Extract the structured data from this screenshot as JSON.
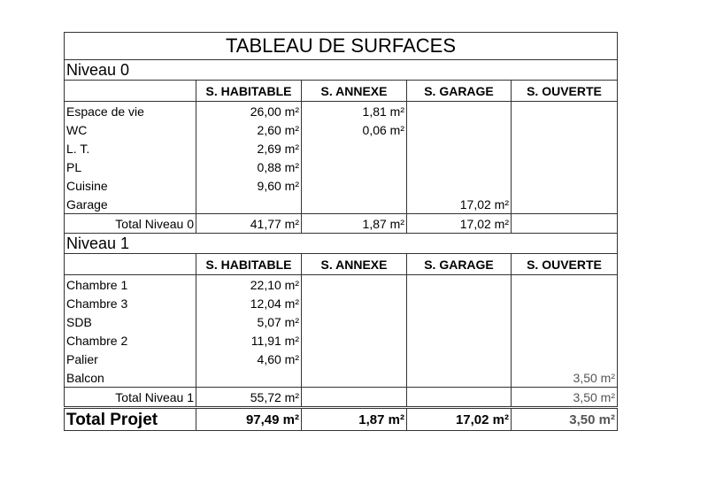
{
  "title": "TABLEAU DE SURFACES",
  "columns": [
    "S. HABITABLE",
    "S. ANNEXE",
    "S. GARAGE",
    "S. OUVERTE"
  ],
  "levels": [
    {
      "name": "Niveau 0",
      "rows": [
        {
          "label": "Espace de vie",
          "habitable": "26,00 m²",
          "annexe": "1,81 m²",
          "garage": "",
          "ouverte": ""
        },
        {
          "label": "WC",
          "habitable": "2,60 m²",
          "annexe": "0,06 m²",
          "garage": "",
          "ouverte": ""
        },
        {
          "label": "L. T.",
          "habitable": "2,69 m²",
          "annexe": "",
          "garage": "",
          "ouverte": ""
        },
        {
          "label": "PL",
          "habitable": "0,88 m²",
          "annexe": "",
          "garage": "",
          "ouverte": ""
        },
        {
          "label": "Cuisine",
          "habitable": "9,60 m²",
          "annexe": "",
          "garage": "",
          "ouverte": ""
        },
        {
          "label": "Garage",
          "habitable": "",
          "annexe": "",
          "garage": "17,02 m²",
          "ouverte": ""
        }
      ],
      "total": {
        "label": "Total Niveau 0",
        "habitable": "41,77 m²",
        "annexe": "1,87 m²",
        "garage": "17,02 m²",
        "ouverte": ""
      }
    },
    {
      "name": "Niveau 1",
      "rows": [
        {
          "label": "Chambre 1",
          "habitable": "22,10 m²",
          "annexe": "",
          "garage": "",
          "ouverte": ""
        },
        {
          "label": "Chambre 3",
          "habitable": "12,04 m²",
          "annexe": "",
          "garage": "",
          "ouverte": ""
        },
        {
          "label": "SDB",
          "habitable": "5,07 m²",
          "annexe": "",
          "garage": "",
          "ouverte": ""
        },
        {
          "label": "Chambre 2",
          "habitable": "11,91 m²",
          "annexe": "",
          "garage": "",
          "ouverte": ""
        },
        {
          "label": "Palier",
          "habitable": "4,60 m²",
          "annexe": "",
          "garage": "",
          "ouverte": ""
        },
        {
          "label": "Balcon",
          "habitable": "",
          "annexe": "",
          "garage": "",
          "ouverte": "3,50 m²"
        }
      ],
      "total": {
        "label": "Total Niveau 1",
        "habitable": "55,72 m²",
        "annexe": "",
        "garage": "",
        "ouverte": "3,50 m²"
      }
    }
  ],
  "grand_total": {
    "label": "Total Projet",
    "habitable": "97,49 m²",
    "annexe": "1,87 m²",
    "garage": "17,02 m²",
    "ouverte": "3,50 m²"
  }
}
